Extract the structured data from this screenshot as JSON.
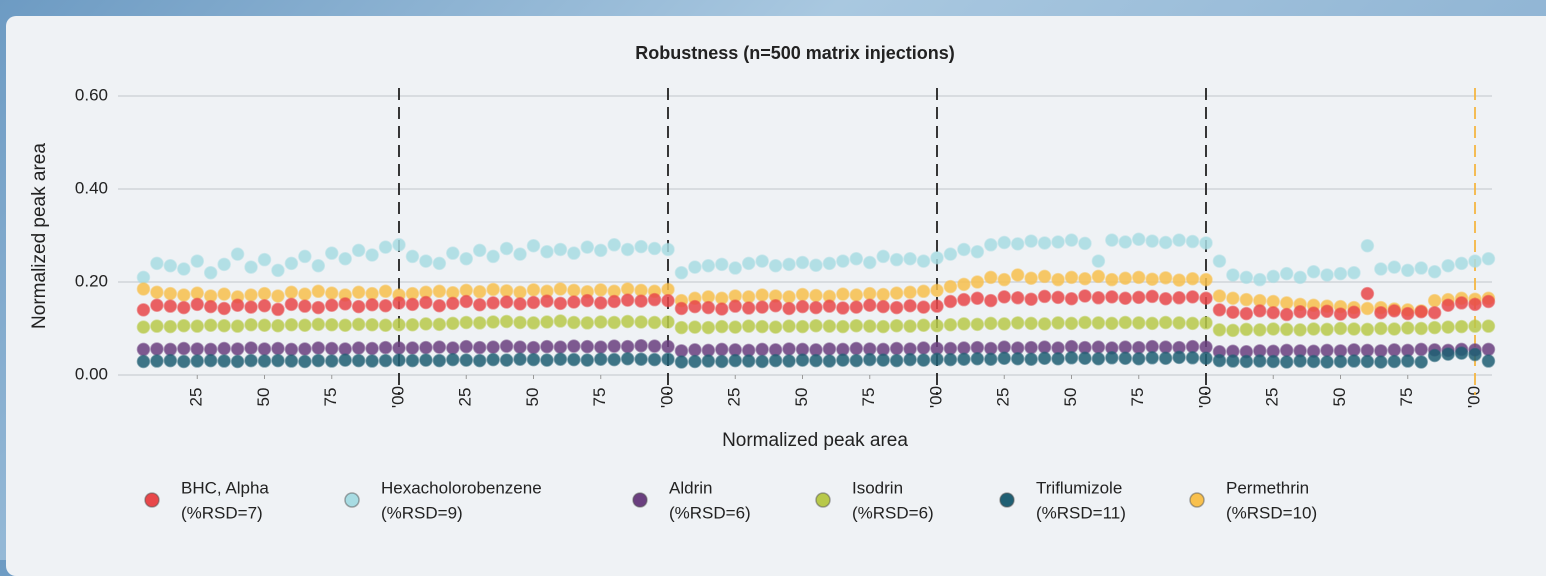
{
  "chart_data": {
    "type": "scatter",
    "title": "Robustness (n=500 matrix injections)",
    "x_label": "Normalized peak area",
    "y_label": "Normalized peak area",
    "xlim": [
      0,
      512
    ],
    "ylim": [
      0,
      0.6
    ],
    "xticks": [
      {
        "value": 25,
        "label": "25"
      },
      {
        "value": 50,
        "label": "50"
      },
      {
        "value": 75,
        "label": "75"
      },
      {
        "value": 100,
        "label": "'00"
      },
      {
        "value": 125,
        "label": "25"
      },
      {
        "value": 150,
        "label": "50"
      },
      {
        "value": 175,
        "label": "75"
      },
      {
        "value": 200,
        "label": "'00"
      },
      {
        "value": 225,
        "label": "25"
      },
      {
        "value": 250,
        "label": "50"
      },
      {
        "value": 275,
        "label": "75"
      },
      {
        "value": 300,
        "label": "'00"
      },
      {
        "value": 325,
        "label": "25"
      },
      {
        "value": 350,
        "label": "50"
      },
      {
        "value": 375,
        "label": "75"
      },
      {
        "value": 400,
        "label": "'00"
      },
      {
        "value": 425,
        "label": "25"
      },
      {
        "value": 450,
        "label": "50"
      },
      {
        "value": 475,
        "label": "75"
      },
      {
        "value": 500,
        "label": "'00"
      }
    ],
    "yticks": [
      {
        "value": 0,
        "label": "0.00"
      },
      {
        "value": 0.2,
        "label": "0.20"
      },
      {
        "value": 0.4,
        "label": "0.40"
      },
      {
        "value": 0.6,
        "label": "0.60"
      }
    ],
    "grid": true,
    "vlines": [
      {
        "x": 100,
        "color": "#222222"
      },
      {
        "x": 200,
        "color": "#222222"
      },
      {
        "x": 300,
        "color": "#222222"
      },
      {
        "x": 400,
        "color": "#222222"
      },
      {
        "x": 500,
        "color": "#f5b642"
      }
    ],
    "x": [
      5,
      10,
      15,
      20,
      25,
      30,
      35,
      40,
      45,
      50,
      55,
      60,
      65,
      70,
      75,
      80,
      85,
      90,
      95,
      100,
      105,
      110,
      115,
      120,
      125,
      130,
      135,
      140,
      145,
      150,
      155,
      160,
      165,
      170,
      175,
      180,
      185,
      190,
      195,
      200,
      205,
      210,
      215,
      220,
      225,
      230,
      235,
      240,
      245,
      250,
      255,
      260,
      265,
      270,
      275,
      280,
      285,
      290,
      295,
      300,
      305,
      310,
      315,
      320,
      325,
      330,
      335,
      340,
      345,
      350,
      355,
      360,
      365,
      370,
      375,
      380,
      385,
      390,
      395,
      400,
      405,
      410,
      415,
      420,
      425,
      430,
      435,
      440,
      445,
      450,
      455,
      460,
      465,
      470,
      475,
      480,
      485,
      490,
      495,
      500,
      505
    ],
    "series": [
      {
        "name": "Hexacholorobenzene",
        "rsd_label": "(%RSD=9)",
        "color": "#a8dce3",
        "values": [
          0.21,
          0.24,
          0.235,
          0.228,
          0.245,
          0.22,
          0.238,
          0.26,
          0.232,
          0.248,
          0.225,
          0.24,
          0.255,
          0.235,
          0.262,
          0.25,
          0.268,
          0.258,
          0.275,
          0.28,
          0.255,
          0.245,
          0.24,
          0.262,
          0.25,
          0.268,
          0.255,
          0.272,
          0.26,
          0.278,
          0.265,
          0.27,
          0.262,
          0.275,
          0.268,
          0.28,
          0.27,
          0.276,
          0.272,
          0.27,
          0.22,
          0.232,
          0.235,
          0.238,
          0.23,
          0.24,
          0.245,
          0.235,
          0.238,
          0.242,
          0.236,
          0.24,
          0.245,
          0.25,
          0.242,
          0.255,
          0.248,
          0.25,
          0.245,
          0.252,
          0.26,
          0.27,
          0.265,
          0.28,
          0.285,
          0.282,
          0.288,
          0.284,
          0.286,
          0.29,
          0.283,
          0.245,
          0.29,
          0.286,
          0.292,
          0.288,
          0.285,
          0.29,
          0.287,
          0.284,
          0.245,
          0.215,
          0.21,
          0.205,
          0.212,
          0.218,
          0.21,
          0.222,
          0.215,
          0.218,
          0.22,
          0.278,
          0.228,
          0.232,
          0.225,
          0.23,
          0.222,
          0.235,
          0.24,
          0.245,
          0.25
        ]
      },
      {
        "name": "Permethrin",
        "rsd_label": "(%RSD=10)",
        "color": "#f8c04d",
        "values": [
          0.185,
          0.178,
          0.175,
          0.172,
          0.176,
          0.17,
          0.174,
          0.168,
          0.172,
          0.175,
          0.17,
          0.178,
          0.174,
          0.18,
          0.176,
          0.172,
          0.178,
          0.175,
          0.18,
          0.172,
          0.175,
          0.178,
          0.18,
          0.177,
          0.182,
          0.179,
          0.184,
          0.181,
          0.178,
          0.183,
          0.18,
          0.185,
          0.182,
          0.179,
          0.183,
          0.18,
          0.185,
          0.182,
          0.18,
          0.184,
          0.16,
          0.165,
          0.168,
          0.165,
          0.17,
          0.168,
          0.172,
          0.17,
          0.168,
          0.173,
          0.171,
          0.169,
          0.174,
          0.172,
          0.175,
          0.173,
          0.176,
          0.178,
          0.18,
          0.182,
          0.19,
          0.195,
          0.2,
          0.21,
          0.205,
          0.215,
          0.208,
          0.212,
          0.205,
          0.21,
          0.207,
          0.212,
          0.205,
          0.208,
          0.21,
          0.206,
          0.209,
          0.204,
          0.207,
          0.205,
          0.17,
          0.165,
          0.162,
          0.16,
          0.158,
          0.155,
          0.152,
          0.15,
          0.148,
          0.147,
          0.145,
          0.143,
          0.145,
          0.142,
          0.14,
          0.138,
          0.16,
          0.162,
          0.165,
          0.163,
          0.165
        ]
      },
      {
        "name": "BHC, Alpha",
        "rsd_label": "(%RSD=7)",
        "color": "#e8474a",
        "values": [
          0.14,
          0.15,
          0.148,
          0.145,
          0.152,
          0.147,
          0.143,
          0.15,
          0.146,
          0.149,
          0.141,
          0.152,
          0.148,
          0.145,
          0.15,
          0.153,
          0.147,
          0.151,
          0.149,
          0.155,
          0.152,
          0.156,
          0.149,
          0.154,
          0.158,
          0.151,
          0.155,
          0.157,
          0.153,
          0.156,
          0.159,
          0.154,
          0.157,
          0.16,
          0.155,
          0.158,
          0.161,
          0.159,
          0.162,
          0.16,
          0.143,
          0.147,
          0.145,
          0.142,
          0.148,
          0.144,
          0.146,
          0.149,
          0.143,
          0.147,
          0.145,
          0.148,
          0.144,
          0.146,
          0.15,
          0.147,
          0.145,
          0.149,
          0.146,
          0.148,
          0.158,
          0.162,
          0.165,
          0.16,
          0.168,
          0.166,
          0.163,
          0.169,
          0.167,
          0.164,
          0.17,
          0.166,
          0.168,
          0.165,
          0.167,
          0.169,
          0.164,
          0.166,
          0.168,
          0.165,
          0.14,
          0.135,
          0.132,
          0.138,
          0.134,
          0.13,
          0.136,
          0.133,
          0.137,
          0.131,
          0.135,
          0.175,
          0.134,
          0.138,
          0.132,
          0.136,
          0.134,
          0.15,
          0.155,
          0.152,
          0.158
        ]
      },
      {
        "name": "Isodrin",
        "rsd_label": "(%RSD=6)",
        "color": "#b8c94a",
        "values": [
          0.103,
          0.105,
          0.104,
          0.106,
          0.105,
          0.107,
          0.106,
          0.105,
          0.108,
          0.107,
          0.106,
          0.108,
          0.107,
          0.109,
          0.108,
          0.107,
          0.109,
          0.108,
          0.107,
          0.108,
          0.108,
          0.11,
          0.109,
          0.111,
          0.113,
          0.112,
          0.114,
          0.115,
          0.113,
          0.112,
          0.114,
          0.116,
          0.113,
          0.112,
          0.114,
          0.113,
          0.115,
          0.114,
          0.113,
          0.114,
          0.102,
          0.103,
          0.102,
          0.104,
          0.103,
          0.105,
          0.104,
          0.103,
          0.105,
          0.104,
          0.106,
          0.105,
          0.104,
          0.106,
          0.105,
          0.104,
          0.106,
          0.105,
          0.107,
          0.106,
          0.108,
          0.11,
          0.109,
          0.111,
          0.11,
          0.112,
          0.111,
          0.11,
          0.112,
          0.111,
          0.113,
          0.112,
          0.111,
          0.113,
          0.112,
          0.111,
          0.113,
          0.112,
          0.111,
          0.112,
          0.097,
          0.096,
          0.098,
          0.097,
          0.099,
          0.098,
          0.097,
          0.099,
          0.098,
          0.1,
          0.099,
          0.098,
          0.1,
          0.099,
          0.101,
          0.1,
          0.102,
          0.103,
          0.104,
          0.105,
          0.105
        ]
      },
      {
        "name": "Aldrin",
        "rsd_label": "(%RSD=6)",
        "color": "#6a3f7f",
        "values": [
          0.055,
          0.056,
          0.055,
          0.057,
          0.056,
          0.055,
          0.057,
          0.056,
          0.058,
          0.056,
          0.057,
          0.055,
          0.056,
          0.058,
          0.057,
          0.056,
          0.058,
          0.057,
          0.059,
          0.058,
          0.058,
          0.059,
          0.06,
          0.058,
          0.061,
          0.059,
          0.06,
          0.062,
          0.06,
          0.059,
          0.061,
          0.06,
          0.062,
          0.061,
          0.06,
          0.062,
          0.061,
          0.063,
          0.062,
          0.061,
          0.052,
          0.054,
          0.053,
          0.055,
          0.054,
          0.053,
          0.055,
          0.054,
          0.056,
          0.055,
          0.054,
          0.056,
          0.055,
          0.057,
          0.056,
          0.055,
          0.057,
          0.056,
          0.058,
          0.057,
          0.057,
          0.058,
          0.059,
          0.057,
          0.06,
          0.058,
          0.059,
          0.06,
          0.058,
          0.061,
          0.059,
          0.06,
          0.058,
          0.06,
          0.059,
          0.061,
          0.06,
          0.059,
          0.061,
          0.06,
          0.05,
          0.051,
          0.05,
          0.052,
          0.051,
          0.053,
          0.052,
          0.051,
          0.053,
          0.052,
          0.054,
          0.053,
          0.052,
          0.054,
          0.053,
          0.055,
          0.054,
          0.053,
          0.055,
          0.054,
          0.055
        ]
      },
      {
        "name": "Triflumizole",
        "rsd_label": "(%RSD=11)",
        "color": "#1f5f73",
        "values": [
          0.029,
          0.03,
          0.031,
          0.029,
          0.03,
          0.031,
          0.03,
          0.029,
          0.031,
          0.03,
          0.031,
          0.03,
          0.029,
          0.031,
          0.03,
          0.032,
          0.031,
          0.03,
          0.031,
          0.032,
          0.031,
          0.032,
          0.031,
          0.033,
          0.032,
          0.031,
          0.033,
          0.032,
          0.034,
          0.033,
          0.032,
          0.034,
          0.033,
          0.032,
          0.034,
          0.033,
          0.035,
          0.034,
          0.033,
          0.034,
          0.028,
          0.029,
          0.03,
          0.029,
          0.031,
          0.03,
          0.029,
          0.031,
          0.03,
          0.032,
          0.031,
          0.03,
          0.032,
          0.031,
          0.033,
          0.032,
          0.031,
          0.033,
          0.032,
          0.034,
          0.033,
          0.034,
          0.035,
          0.034,
          0.036,
          0.035,
          0.034,
          0.036,
          0.035,
          0.037,
          0.036,
          0.035,
          0.037,
          0.036,
          0.035,
          0.037,
          0.036,
          0.038,
          0.037,
          0.036,
          0.031,
          0.03,
          0.029,
          0.03,
          0.029,
          0.028,
          0.03,
          0.029,
          0.028,
          0.029,
          0.03,
          0.029,
          0.028,
          0.029,
          0.03,
          0.028,
          0.042,
          0.045,
          0.047,
          0.044,
          0.03
        ]
      }
    ],
    "legend_order": [
      2,
      0,
      4,
      3,
      5,
      1
    ]
  }
}
